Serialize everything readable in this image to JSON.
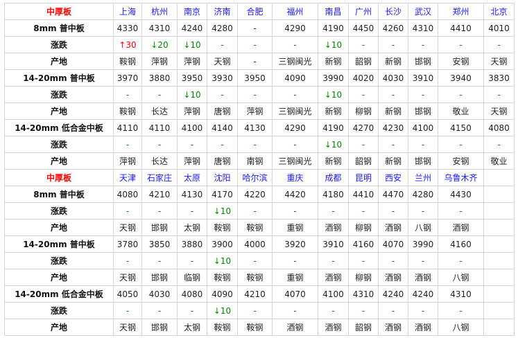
{
  "colors": {
    "title": "#ff0000",
    "city": "#1a1aff",
    "up": "#ff0000",
    "down": "#008800"
  },
  "sections": [
    {
      "title": "中厚板",
      "cities": [
        "上海",
        "杭州",
        "南京",
        "济南",
        "合肥",
        "福州",
        "南昌",
        "广州",
        "长沙",
        "武汉",
        "郑州",
        "北京"
      ],
      "rows": [
        {
          "label": "8mm 普中板",
          "type": "price",
          "cells": [
            "4330",
            "4310",
            "4240",
            "4280",
            "-",
            "4290",
            "4190",
            "4450",
            "4260",
            "4310",
            "4410",
            "4010"
          ]
        },
        {
          "label": "涨跌",
          "type": "change",
          "cells": [
            "↑30",
            "↓20",
            "↓10",
            "-",
            "-",
            "-",
            "↓10",
            "-",
            "-",
            "-",
            "-",
            "-"
          ]
        },
        {
          "label": "产地",
          "type": "origin",
          "cells": [
            "鞍钢",
            "萍钢",
            "萍钢",
            "天钢",
            "-",
            "三钢闽光",
            "新钢",
            "韶钢",
            "新钢",
            "邯钢",
            "安钢",
            "天钢"
          ]
        },
        {
          "label": "14-20mm 普中板",
          "type": "price",
          "cells": [
            "3970",
            "3880",
            "3950",
            "3930",
            "3950",
            "4090",
            "3990",
            "4020",
            "4030",
            "3910",
            "3940",
            "3830"
          ]
        },
        {
          "label": "涨跌",
          "type": "change",
          "cells": [
            "-",
            "-",
            "↓10",
            "-",
            "-",
            "-",
            "↓10",
            "-",
            "-",
            "-",
            "-",
            "-"
          ]
        },
        {
          "label": "产地",
          "type": "origin",
          "cells": [
            "鞍钢",
            "长达",
            "萍钢",
            "唐钢",
            "萍钢",
            "三钢闽光",
            "新钢",
            "柳钢",
            "新钢",
            "邯钢",
            "敬业",
            "天钢"
          ]
        },
        {
          "label": "14-20mm 低合金中板",
          "type": "price",
          "cells": [
            "4110",
            "4110",
            "4100",
            "4140",
            "4130",
            "4290",
            "4190",
            "4270",
            "4230",
            "4100",
            "4150",
            "4080"
          ]
        },
        {
          "label": "涨跌",
          "type": "change",
          "cells": [
            "-",
            "-",
            "-",
            "-",
            "-",
            "-",
            "↓10",
            "-",
            "-",
            "-",
            "-",
            "-"
          ]
        },
        {
          "label": "产地",
          "type": "origin",
          "cells": [
            "萍钢",
            "长达",
            "萍钢",
            "唐钢",
            "南钢",
            "三钢闽光",
            "新钢",
            "韶钢",
            "新钢",
            "邯钢",
            "安钢",
            "敬业"
          ]
        }
      ]
    },
    {
      "title": "中厚板",
      "cities": [
        "天津",
        "石家庄",
        "太原",
        "沈阳",
        "哈尔滨",
        "重庆",
        "成都",
        "昆明",
        "西安",
        "兰州",
        "乌鲁木齐",
        ""
      ],
      "rows": [
        {
          "label": "8mm 普中板",
          "type": "price",
          "cells": [
            "4080",
            "4210",
            "4130",
            "4170",
            "4220",
            "4420",
            "4180",
            "4410",
            "4470",
            "4280",
            "4430",
            ""
          ]
        },
        {
          "label": "涨跌",
          "type": "change",
          "cells": [
            "-",
            "-",
            "-",
            "↓10",
            "-",
            "-",
            "-",
            "-",
            "-",
            "-",
            "-",
            ""
          ]
        },
        {
          "label": "产地",
          "type": "origin",
          "cells": [
            "天钢",
            "邯钢",
            "太钢",
            "鞍钢",
            "鞍钢",
            "重钢",
            "酒钢",
            "柳钢",
            "酒钢",
            "八钢",
            "酒钢",
            ""
          ]
        },
        {
          "label": "14-20mm 普中板",
          "type": "price",
          "cells": [
            "3780",
            "3850",
            "3880",
            "3900",
            "4000",
            "3920",
            "3910",
            "4160",
            "4070",
            "3990",
            "4160",
            ""
          ]
        },
        {
          "label": "涨跌",
          "type": "change",
          "cells": [
            "-",
            "-",
            "-",
            "↓10",
            "-",
            "-",
            "-",
            "-",
            "-",
            "-",
            "-",
            ""
          ]
        },
        {
          "label": "产地",
          "type": "origin",
          "cells": [
            "天钢",
            "邯钢",
            "临钢",
            "鞍钢",
            "鞍钢",
            "重钢",
            "酒钢",
            "柳钢",
            "酒钢",
            "酒钢",
            "八钢",
            ""
          ]
        },
        {
          "label": "14-20mm 低合金中板",
          "type": "price",
          "cells": [
            "4050",
            "4030",
            "4080",
            "4090",
            "4210",
            "4070",
            "4100",
            "4310",
            "4240",
            "4240",
            "4310",
            ""
          ]
        },
        {
          "label": "涨跌",
          "type": "change",
          "cells": [
            "-",
            "-",
            "-",
            "↓10",
            "-",
            "-",
            "-",
            "-",
            "-",
            "-",
            "-",
            ""
          ]
        },
        {
          "label": "产地",
          "type": "origin",
          "cells": [
            "天钢",
            "邯钢",
            "太钢",
            "鞍钢",
            "鞍钢",
            "酒钢",
            "酒钢",
            "韶钢",
            "酒钢",
            "酒钢",
            "八钢",
            ""
          ]
        }
      ]
    }
  ]
}
